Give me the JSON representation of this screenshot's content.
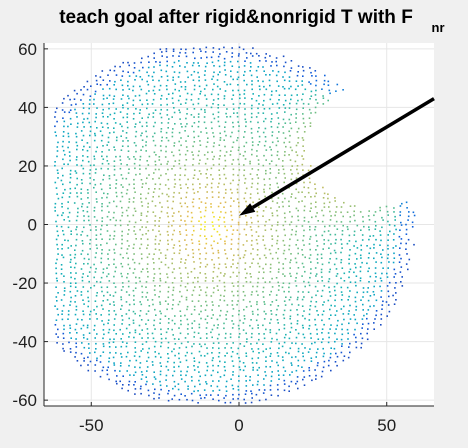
{
  "chart_data": {
    "type": "scatter",
    "title": "teach goal after rigid&nonrigid T with F",
    "title_subscript": "nr",
    "xlabel": "",
    "ylabel": "",
    "xlim": [
      -66,
      66
    ],
    "ylim": [
      -62,
      62
    ],
    "xticks": [
      -50,
      0,
      50
    ],
    "yticks": [
      -60,
      -40,
      -20,
      0,
      20,
      40,
      60
    ],
    "xtick_labels": [
      "-50",
      "0",
      "50"
    ],
    "ytick_labels": [
      "-60",
      "-40",
      "-20",
      "0",
      "20",
      "40",
      "60"
    ],
    "grid": true,
    "colormap": "parula",
    "colors": {
      "background": "#f0f0f0",
      "axes_face": "#ffffff",
      "grid": "#e6e6e6",
      "axis_line": "#262626",
      "arrow": "#000000"
    },
    "point_cloud": {
      "description_of_shape": "roughly circular blob, radius ~60, with a concave notch on the upper-right",
      "center": [
        -10,
        0
      ],
      "radius": 62,
      "notch": {
        "x_range": [
          20,
          66
        ],
        "y_range": [
          5,
          50
        ]
      }
    },
    "arrow": {
      "start": [
        66,
        43
      ],
      "end": [
        0,
        3
      ]
    }
  }
}
